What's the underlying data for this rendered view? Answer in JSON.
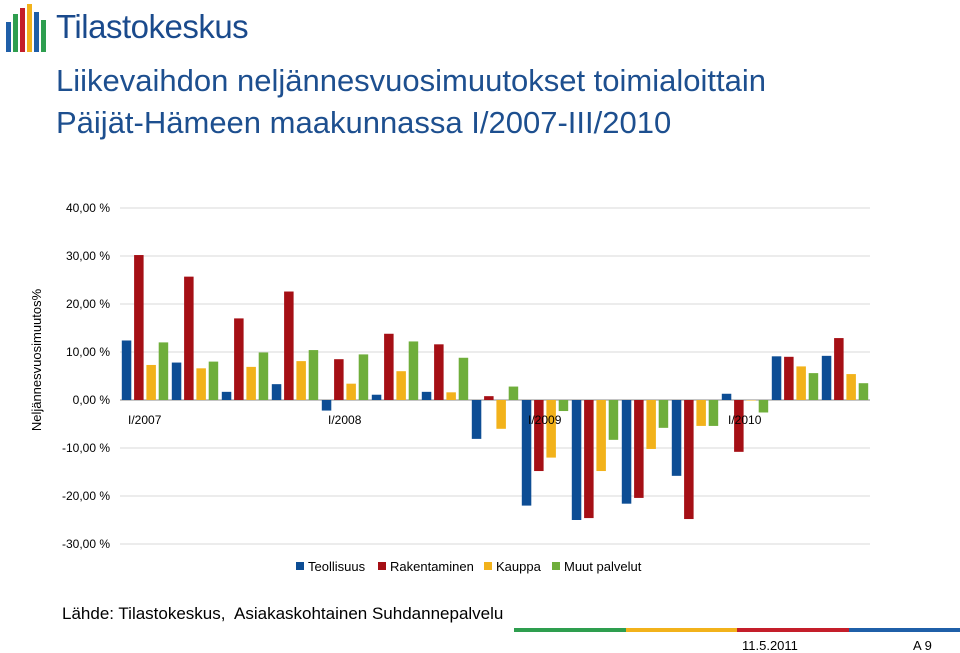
{
  "brand": {
    "name": "Tilastokeskus",
    "color": "#1a4a8c"
  },
  "title": {
    "line1": "Liikevaihdon neljännesvuosimuutokset toimialoittain",
    "line2": "Päijät-Hämeen maakunnassa I/2007-III/2010",
    "color": "#1d4f8f"
  },
  "source_text": "Lähde: Tilastokeskus,  Asiakaskohtainen Suhdannepalvelu",
  "footer": {
    "date": "11.5.2011",
    "page": "A 9",
    "stripe_colors": [
      "#2e9e4f",
      "#f2b21b",
      "#c41e2a",
      "#1f5fa8"
    ]
  },
  "chart_data": {
    "type": "bar",
    "title": "",
    "xlabel": "",
    "ylabel": "Neljännesvuosimuutos%",
    "ylim": [
      -30,
      40
    ],
    "yticks": [
      40,
      30,
      20,
      10,
      0,
      -10,
      -20,
      -30
    ],
    "ytick_labels": [
      "40,00 %",
      "30,00 %",
      "20,00 %",
      "10,00 %",
      "0,00 %",
      "-10,00 %",
      "-20,00 %",
      "-30,00 %"
    ],
    "categories": [
      "I/2007",
      "II/2007",
      "III/2007",
      "IV/2007",
      "I/2008",
      "II/2008",
      "III/2008",
      "IV/2008",
      "I/2009",
      "II/2009",
      "III/2009",
      "IV/2009",
      "I/2010",
      "II/2010",
      "III/2010"
    ],
    "category_labels": [
      "I/2007",
      "",
      "",
      "",
      "I/2008",
      "",
      "",
      "",
      "I/2009",
      "",
      "",
      "",
      "I/2010",
      "",
      ""
    ],
    "grid": true,
    "legend_position": "bottom",
    "series": [
      {
        "name": "Teollisuus",
        "color": "#0d4d94",
        "values": [
          12.4,
          7.8,
          1.7,
          3.3,
          -2.2,
          1.1,
          1.7,
          -8.1,
          -22.0,
          -25.0,
          -21.6,
          -15.8,
          1.3,
          9.1,
          9.2
        ]
      },
      {
        "name": "Rakentaminen",
        "color": "#a50f15",
        "values": [
          30.2,
          25.7,
          17.0,
          22.6,
          8.5,
          13.8,
          11.6,
          0.8,
          -14.8,
          -24.6,
          -20.4,
          -24.8,
          -10.8,
          9.0,
          12.9
        ]
      },
      {
        "name": "Kauppa",
        "color": "#f2b21b",
        "values": [
          7.3,
          6.6,
          6.9,
          8.1,
          3.4,
          6.0,
          1.6,
          -6.0,
          -12.0,
          -14.8,
          -10.2,
          -5.4,
          0.0,
          7.0,
          5.4
        ]
      },
      {
        "name": "Muut palvelut",
        "color": "#6fae3b",
        "values": [
          12.0,
          8.0,
          9.9,
          10.4,
          9.5,
          12.2,
          8.8,
          2.8,
          -2.3,
          -8.3,
          -5.8,
          -5.4,
          -2.6,
          5.6,
          3.5
        ]
      }
    ]
  }
}
